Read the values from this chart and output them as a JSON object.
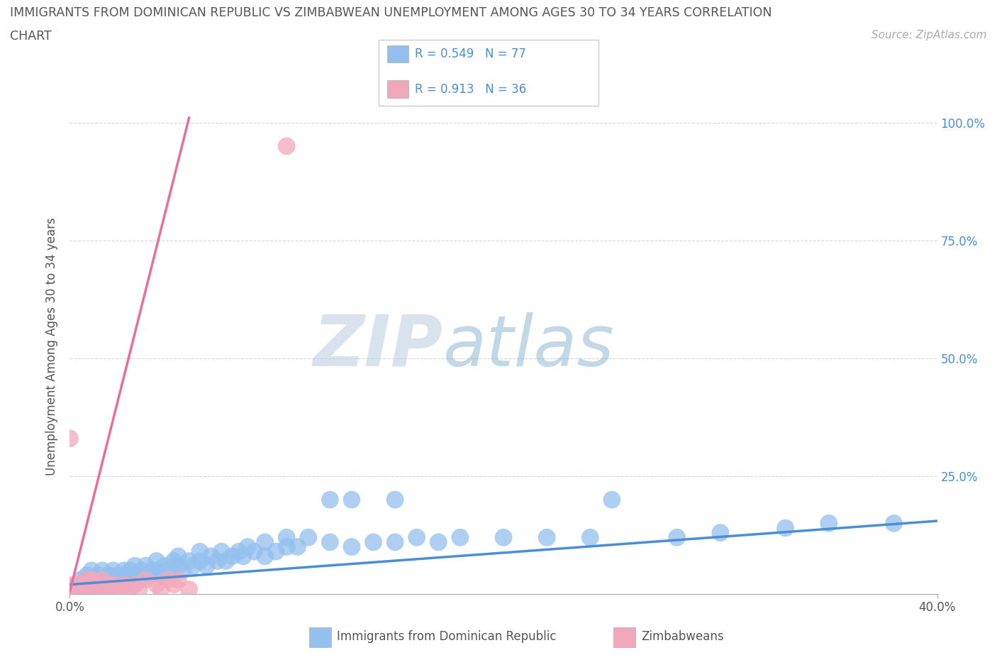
{
  "title_line1": "IMMIGRANTS FROM DOMINICAN REPUBLIC VS ZIMBABWEAN UNEMPLOYMENT AMONG AGES 30 TO 34 YEARS CORRELATION",
  "title_line2": "CHART",
  "source": "Source: ZipAtlas.com",
  "ylabel": "Unemployment Among Ages 30 to 34 years",
  "x_min": 0.0,
  "x_max": 0.4,
  "y_min": 0.0,
  "y_max": 1.05,
  "y_ticks": [
    0.0,
    0.25,
    0.5,
    0.75,
    1.0
  ],
  "y_tick_labels": [
    "",
    "25.0%",
    "50.0%",
    "75.0%",
    "100.0%"
  ],
  "x_tick_labels": [
    "0.0%",
    "40.0%"
  ],
  "blue_R": "0.549",
  "blue_N": "77",
  "pink_R": "0.913",
  "pink_N": "36",
  "blue_color": "#93C0EE",
  "pink_color": "#F2A8BC",
  "blue_line_color": "#4A8FD4",
  "pink_line_color": "#E87098",
  "watermark_zip": "ZIP",
  "watermark_atlas": "atlas",
  "blue_scatter_x": [
    0.003,
    0.005,
    0.007,
    0.008,
    0.01,
    0.01,
    0.012,
    0.013,
    0.015,
    0.015,
    0.017,
    0.018,
    0.019,
    0.02,
    0.02,
    0.022,
    0.023,
    0.025,
    0.025,
    0.027,
    0.028,
    0.03,
    0.03,
    0.032,
    0.033,
    0.035,
    0.037,
    0.038,
    0.04,
    0.04,
    0.042,
    0.044,
    0.046,
    0.048,
    0.05,
    0.05,
    0.052,
    0.055,
    0.057,
    0.06,
    0.06,
    0.063,
    0.065,
    0.068,
    0.07,
    0.072,
    0.075,
    0.078,
    0.08,
    0.082,
    0.085,
    0.09,
    0.09,
    0.095,
    0.1,
    0.1,
    0.105,
    0.11,
    0.12,
    0.12,
    0.13,
    0.13,
    0.14,
    0.15,
    0.15,
    0.16,
    0.17,
    0.18,
    0.2,
    0.22,
    0.24,
    0.25,
    0.28,
    0.3,
    0.33,
    0.35,
    0.38
  ],
  "blue_scatter_y": [
    0.02,
    0.03,
    0.02,
    0.04,
    0.02,
    0.05,
    0.03,
    0.04,
    0.02,
    0.05,
    0.03,
    0.04,
    0.02,
    0.03,
    0.05,
    0.04,
    0.03,
    0.04,
    0.05,
    0.03,
    0.05,
    0.04,
    0.06,
    0.03,
    0.05,
    0.06,
    0.04,
    0.05,
    0.05,
    0.07,
    0.04,
    0.06,
    0.05,
    0.07,
    0.06,
    0.08,
    0.05,
    0.07,
    0.06,
    0.07,
    0.09,
    0.06,
    0.08,
    0.07,
    0.09,
    0.07,
    0.08,
    0.09,
    0.08,
    0.1,
    0.09,
    0.08,
    0.11,
    0.09,
    0.1,
    0.12,
    0.1,
    0.12,
    0.11,
    0.2,
    0.1,
    0.2,
    0.11,
    0.2,
    0.11,
    0.12,
    0.11,
    0.12,
    0.12,
    0.12,
    0.12,
    0.2,
    0.12,
    0.13,
    0.14,
    0.15,
    0.15
  ],
  "pink_scatter_x": [
    0.0,
    0.0,
    0.002,
    0.002,
    0.003,
    0.004,
    0.005,
    0.005,
    0.006,
    0.007,
    0.008,
    0.009,
    0.01,
    0.01,
    0.01,
    0.012,
    0.013,
    0.015,
    0.015,
    0.017,
    0.018,
    0.02,
    0.022,
    0.025,
    0.025,
    0.027,
    0.03,
    0.032,
    0.035,
    0.04,
    0.042,
    0.045,
    0.048,
    0.05,
    0.055,
    0.1
  ],
  "pink_scatter_y": [
    0.33,
    0.01,
    0.01,
    0.02,
    0.01,
    0.02,
    0.01,
    0.02,
    0.02,
    0.01,
    0.03,
    0.01,
    0.01,
    0.02,
    0.03,
    0.01,
    0.02,
    0.01,
    0.03,
    0.02,
    0.01,
    0.02,
    0.01,
    0.01,
    0.02,
    0.01,
    0.02,
    0.01,
    0.03,
    0.02,
    0.01,
    0.03,
    0.02,
    0.03,
    0.01,
    0.95
  ],
  "blue_line_x": [
    0.0,
    0.4
  ],
  "blue_line_y": [
    0.02,
    0.155
  ],
  "pink_line_x": [
    0.0,
    0.055
  ],
  "pink_line_y": [
    0.005,
    1.01
  ],
  "background_color": "#FFFFFF",
  "grid_color": "#CCCCCC"
}
